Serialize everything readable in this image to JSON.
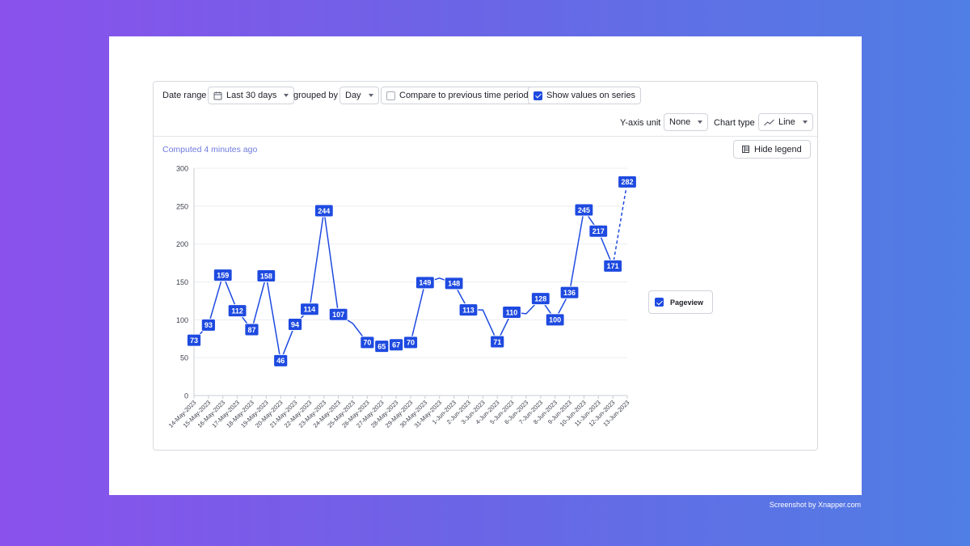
{
  "toolbar": {
    "date_range_label": "Date range",
    "date_range_value": "Last 30 days",
    "grouped_by_label": "grouped by",
    "grouped_by_value": "Day",
    "compare_label": "Compare to previous time period",
    "compare_checked": false,
    "show_values_label": "Show values on series",
    "show_values_checked": true,
    "y_axis_unit_label": "Y-axis unit",
    "y_axis_unit_value": "None",
    "chart_type_label": "Chart type",
    "chart_type_value": "Line"
  },
  "computed_text": "Computed 4 minutes ago",
  "hide_legend_label": "Hide legend",
  "legend": {
    "series_name": "Pageview",
    "checked": true
  },
  "credit": "Screenshot by Xnapper.com",
  "colors": {
    "series": "#1e4ae0",
    "accent": "#1e4ae0"
  },
  "chart_data": {
    "type": "line",
    "title": "",
    "xlabel": "",
    "ylabel": "",
    "ylim": [
      0,
      300
    ],
    "yticks": [
      0,
      50,
      100,
      150,
      200,
      250,
      300
    ],
    "categories": [
      "14-May-2023",
      "15-May-2023",
      "16-May-2023",
      "17-May-2023",
      "18-May-2023",
      "19-May-2023",
      "20-May-2023",
      "21-May-2023",
      "22-May-2023",
      "23-May-2023",
      "24-May-2023",
      "25-May-2023",
      "26-May-2023",
      "27-May-2023",
      "28-May-2023",
      "29-May-2023",
      "30-May-2023",
      "31-May-2023",
      "1-Jun-2023",
      "2-Jun-2023",
      "3-Jun-2023",
      "4-Jun-2023",
      "5-Jun-2023",
      "6-Jun-2023",
      "7-Jun-2023",
      "8-Jun-2023",
      "9-Jun-2023",
      "10-Jun-2023",
      "11-Jun-2023",
      "12-Jun-2023",
      "13-Jun-2023"
    ],
    "series": [
      {
        "name": "Pageview",
        "values": [
          73,
          93,
          159,
          112,
          87,
          158,
          46,
          94,
          114,
          244,
          107,
          95,
          70,
          65,
          67,
          70,
          149,
          155,
          148,
          113,
          113,
          71,
          110,
          108,
          128,
          100,
          136,
          245,
          217,
          171,
          282
        ],
        "labeled": [
          true,
          true,
          true,
          true,
          true,
          true,
          true,
          true,
          true,
          true,
          true,
          false,
          true,
          true,
          true,
          true,
          true,
          false,
          true,
          true,
          false,
          true,
          true,
          false,
          true,
          true,
          true,
          true,
          true,
          true,
          true
        ],
        "dashed_from_index": 29
      }
    ],
    "legend_position": "right",
    "grid": true
  }
}
